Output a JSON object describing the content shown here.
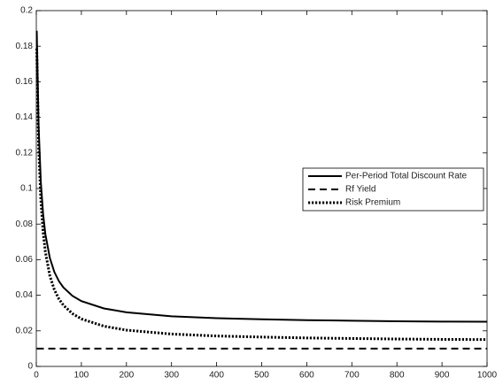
{
  "chart_data": {
    "type": "line",
    "x": [
      1,
      5,
      10,
      15,
      20,
      30,
      40,
      50,
      60,
      80,
      100,
      150,
      200,
      300,
      400,
      500,
      600,
      700,
      800,
      900,
      1000
    ],
    "series": [
      {
        "name": "Per-Period Total Discount Rate",
        "color": "#000000",
        "dash": "solid",
        "values": [
          0.1887,
          0.1357,
          0.1037,
          0.0859,
          0.0745,
          0.061,
          0.0531,
          0.048,
          0.0444,
          0.0397,
          0.0367,
          0.0326,
          0.0304,
          0.0282,
          0.0271,
          0.0265,
          0.026,
          0.0257,
          0.0254,
          0.0252,
          0.0251
        ]
      },
      {
        "name": "Rf Yield",
        "color": "#000000",
        "dash": "dashed",
        "values": [
          0.01,
          0.01,
          0.01,
          0.01,
          0.01,
          0.01,
          0.01,
          0.01,
          0.01,
          0.01,
          0.01,
          0.01,
          0.01,
          0.01,
          0.01,
          0.01,
          0.01,
          0.01,
          0.01,
          0.01,
          0.01
        ]
      },
      {
        "name": "Risk Premium",
        "color": "#000000",
        "dash": "dotted",
        "values": [
          0.1787,
          0.1257,
          0.0937,
          0.0759,
          0.0645,
          0.051,
          0.0431,
          0.038,
          0.0344,
          0.0297,
          0.0267,
          0.0226,
          0.0204,
          0.0182,
          0.0171,
          0.0165,
          0.016,
          0.0157,
          0.0154,
          0.0152,
          0.0151
        ]
      }
    ],
    "xlim": [
      0,
      1000
    ],
    "xticks": [
      0,
      100,
      200,
      300,
      400,
      500,
      600,
      700,
      800,
      900,
      1000
    ],
    "ylim": [
      0,
      0.2
    ],
    "yticks": [
      0,
      0.02,
      0.04,
      0.06,
      0.08,
      0.1,
      0.12,
      0.14,
      0.16,
      0.18,
      0.2
    ],
    "legend": "right"
  }
}
